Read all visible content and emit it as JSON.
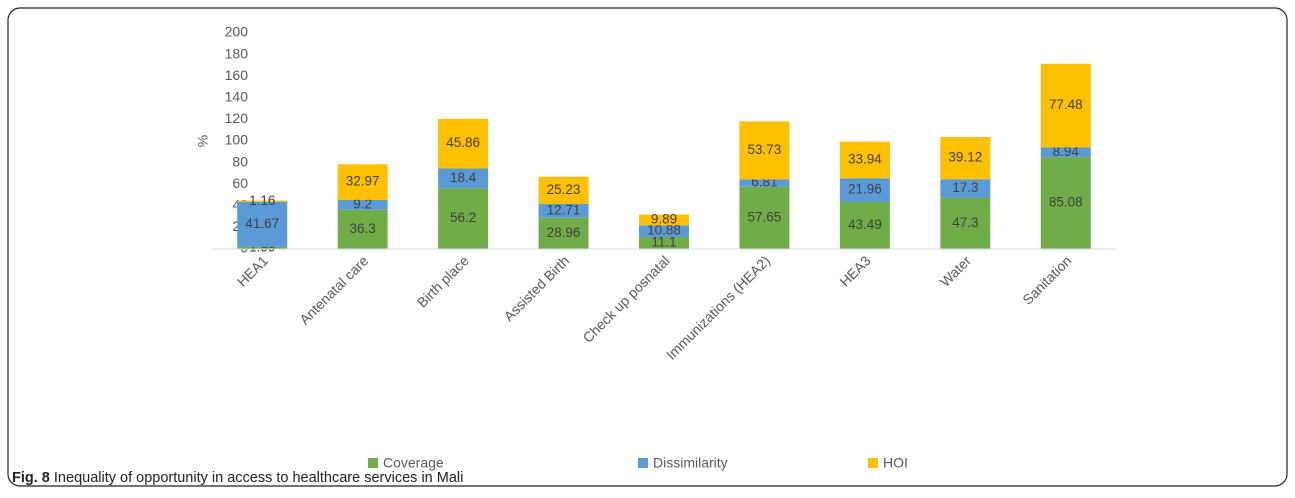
{
  "chart_data": {
    "type": "stacked_bar",
    "categories": [
      "HEA1",
      "Antenatal care",
      "Birth place",
      "Assisted Birth",
      "Check up posnatal",
      "Immunizations (HEA2)",
      "HEA3",
      "Water",
      "Sanitation"
    ],
    "series": [
      {
        "name": "Coverage",
        "color": "#70ad47",
        "values": [
          1.99,
          36.3,
          56.2,
          28.96,
          11.1,
          57.65,
          43.49,
          47.3,
          85.08
        ]
      },
      {
        "name": "Dissimilarity",
        "color": "#5b9bd5",
        "values": [
          41.67,
          9.2,
          18.4,
          12.71,
          10.88,
          6.81,
          21.96,
          17.3,
          8.94
        ]
      },
      {
        "name": "HOI",
        "color": "#ffc000",
        "values": [
          1.16,
          32.97,
          45.86,
          25.23,
          9.89,
          53.73,
          33.94,
          39.12,
          77.48
        ]
      }
    ],
    "ylabel": "%",
    "ylim": [
      0,
      200
    ],
    "yticks": [
      0,
      20,
      40,
      60,
      80,
      100,
      120,
      140,
      160,
      180,
      200
    ],
    "legend": "bottom",
    "caption_label": "Fig. 8",
    "caption": "Inequality of opportunity in access to healthcare services in Mali"
  }
}
